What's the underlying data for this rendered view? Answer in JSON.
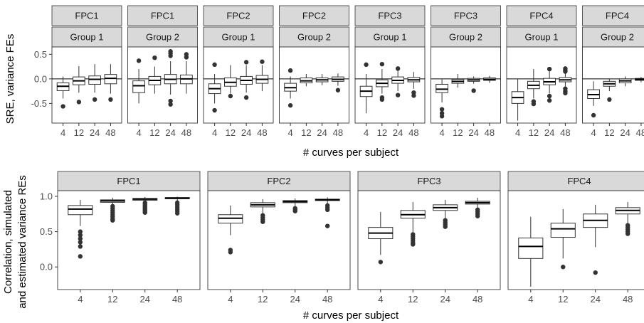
{
  "chart_data": [
    {
      "type": "boxplot",
      "xlabel": "# curves per subject",
      "ylabel": "SRE, variance FEs",
      "ylim": [
        -0.9,
        0.65
      ],
      "yticks": [
        0.5,
        0.0,
        -0.5
      ],
      "ytick_labels": [
        "0.5",
        "0.0",
        "-0.5"
      ],
      "reference_line_y": 0.0,
      "categories": [
        "4",
        "12",
        "24",
        "48"
      ],
      "panels": [
        {
          "strip1": "FPC1",
          "strip2": "Group 1",
          "boxes": [
            {
              "category": "4",
              "lower_whisker": -0.4,
              "q1": -0.24,
              "median": -0.15,
              "q3": -0.08,
              "upper_whisker": 0.05,
              "outliers": [
                -0.56
              ]
            },
            {
              "category": "12",
              "lower_whisker": -0.28,
              "q1": -0.12,
              "median": -0.04,
              "q3": 0.04,
              "upper_whisker": 0.26,
              "outliers": [
                -0.47
              ]
            },
            {
              "category": "24",
              "lower_whisker": -0.28,
              "q1": -0.11,
              "median": -0.01,
              "q3": 0.06,
              "upper_whisker": 0.3,
              "outliers": [
                -0.42
              ]
            },
            {
              "category": "48",
              "lower_whisker": -0.3,
              "q1": -0.1,
              "median": 0.01,
              "q3": 0.09,
              "upper_whisker": 0.3,
              "outliers": [
                -0.42
              ]
            }
          ]
        },
        {
          "strip1": "FPC1",
          "strip2": "Group 2",
          "boxes": [
            {
              "category": "4",
              "lower_whisker": -0.5,
              "q1": -0.28,
              "median": -0.14,
              "q3": -0.04,
              "upper_whisker": 0.2,
              "outliers": [
                0.37
              ]
            },
            {
              "category": "12",
              "lower_whisker": -0.3,
              "q1": -0.12,
              "median": -0.03,
              "q3": 0.05,
              "upper_whisker": 0.25,
              "outliers": [
                0.43
              ]
            },
            {
              "category": "24",
              "lower_whisker": -0.32,
              "q1": -0.1,
              "median": -0.01,
              "q3": 0.09,
              "upper_whisker": 0.36,
              "outliers": [
                0.47,
                0.52,
                0.56,
                -0.45,
                -0.52
              ]
            },
            {
              "category": "48",
              "lower_whisker": -0.3,
              "q1": -0.1,
              "median": 0.0,
              "q3": 0.08,
              "upper_whisker": 0.36,
              "outliers": [
                0.44,
                0.5
              ]
            }
          ]
        },
        {
          "strip1": "FPC2",
          "strip2": "Group 1",
          "boxes": [
            {
              "category": "4",
              "lower_whisker": -0.5,
              "q1": -0.3,
              "median": -0.2,
              "q3": -0.1,
              "upper_whisker": 0.1,
              "outliers": [
                -0.64,
                0.29
              ]
            },
            {
              "category": "12",
              "lower_whisker": -0.3,
              "q1": -0.15,
              "median": -0.07,
              "q3": 0.02,
              "upper_whisker": 0.28,
              "outliers": [
                -0.35
              ]
            },
            {
              "category": "24",
              "lower_whisker": -0.28,
              "q1": -0.11,
              "median": -0.03,
              "q3": 0.05,
              "upper_whisker": 0.28,
              "outliers": [
                0.34,
                -0.38
              ]
            },
            {
              "category": "48",
              "lower_whisker": -0.25,
              "q1": -0.09,
              "median": -0.01,
              "q3": 0.07,
              "upper_whisker": 0.28,
              "outliers": [
                0.35
              ]
            }
          ]
        },
        {
          "strip1": "FPC2",
          "strip2": "Group 2",
          "boxes": [
            {
              "category": "4",
              "lower_whisker": -0.4,
              "q1": -0.25,
              "median": -0.18,
              "q3": -0.09,
              "upper_whisker": 0.05,
              "outliers": [
                0.17,
                -0.54
              ]
            },
            {
              "category": "12",
              "lower_whisker": -0.15,
              "q1": -0.08,
              "median": -0.04,
              "q3": 0.02,
              "upper_whisker": 0.1,
              "outliers": []
            },
            {
              "category": "24",
              "lower_whisker": -0.13,
              "q1": -0.06,
              "median": -0.02,
              "q3": 0.02,
              "upper_whisker": 0.1,
              "outliers": []
            },
            {
              "category": "48",
              "lower_whisker": -0.14,
              "q1": -0.05,
              "median": -0.01,
              "q3": 0.04,
              "upper_whisker": 0.11,
              "outliers": [
                -0.23
              ]
            }
          ]
        },
        {
          "strip1": "FPC3",
          "strip2": "Group 1",
          "boxes": [
            {
              "category": "4",
              "lower_whisker": -0.7,
              "q1": -0.36,
              "median": -0.25,
              "q3": -0.15,
              "upper_whisker": 0.1,
              "outliers": [
                0.29
              ]
            },
            {
              "category": "12",
              "lower_whisker": -0.3,
              "q1": -0.16,
              "median": -0.09,
              "q3": -0.02,
              "upper_whisker": 0.2,
              "outliers": [
                0.3,
                -0.38,
                -0.42
              ]
            },
            {
              "category": "24",
              "lower_whisker": -0.25,
              "q1": -0.09,
              "median": -0.03,
              "q3": 0.04,
              "upper_whisker": 0.2,
              "outliers": [
                0.21,
                -0.33
              ]
            },
            {
              "category": "48",
              "lower_whisker": -0.2,
              "q1": -0.06,
              "median": -0.02,
              "q3": 0.03,
              "upper_whisker": 0.14,
              "outliers": [
                -0.28,
                -0.34
              ]
            }
          ]
        },
        {
          "strip1": "FPC3",
          "strip2": "Group 2",
          "boxes": [
            {
              "category": "4",
              "lower_whisker": -0.48,
              "q1": -0.28,
              "median": -0.21,
              "q3": -0.11,
              "upper_whisker": -0.01,
              "outliers": [
                -0.62,
                -0.7,
                -0.76
              ]
            },
            {
              "category": "12",
              "lower_whisker": -0.18,
              "q1": -0.09,
              "median": -0.05,
              "q3": -0.01,
              "upper_whisker": 0.1,
              "outliers": []
            },
            {
              "category": "24",
              "lower_whisker": -0.1,
              "q1": -0.05,
              "median": -0.02,
              "q3": 0.01,
              "upper_whisker": 0.05,
              "outliers": [
                -0.24
              ]
            },
            {
              "category": "48",
              "lower_whisker": -0.08,
              "q1": -0.03,
              "median": -0.01,
              "q3": 0.02,
              "upper_whisker": 0.06,
              "outliers": []
            }
          ]
        },
        {
          "strip1": "FPC4",
          "strip2": "Group 1",
          "boxes": [
            {
              "category": "4",
              "lower_whisker": -0.85,
              "q1": -0.5,
              "median": -0.38,
              "q3": -0.26,
              "upper_whisker": 0.0,
              "outliers": []
            },
            {
              "category": "12",
              "lower_whisker": -0.4,
              "q1": -0.2,
              "median": -0.13,
              "q3": -0.05,
              "upper_whisker": 0.2,
              "outliers": [
                -0.46,
                -0.51
              ]
            },
            {
              "category": "24",
              "lower_whisker": -0.3,
              "q1": -0.12,
              "median": -0.06,
              "q3": 0.01,
              "upper_whisker": 0.18,
              "outliers": [
                0.2,
                -0.35,
                -0.44
              ]
            },
            {
              "category": "48",
              "lower_whisker": -0.2,
              "q1": -0.06,
              "median": -0.02,
              "q3": 0.03,
              "upper_whisker": 0.12,
              "outliers": [
                0.15,
                0.18,
                0.21,
                -0.2,
                -0.25,
                -0.29
              ]
            }
          ]
        },
        {
          "strip1": "FPC4",
          "strip2": "Group 2",
          "boxes": [
            {
              "category": "4",
              "lower_whisker": -0.55,
              "q1": -0.4,
              "median": -0.32,
              "q3": -0.22,
              "upper_whisker": -0.05,
              "outliers": [
                -0.74
              ]
            },
            {
              "category": "12",
              "lower_whisker": -0.25,
              "q1": -0.15,
              "median": -0.1,
              "q3": -0.05,
              "upper_whisker": 0.0,
              "outliers": [
                -0.42
              ]
            },
            {
              "category": "24",
              "lower_whisker": -0.15,
              "q1": -0.08,
              "median": -0.04,
              "q3": 0.0,
              "upper_whisker": 0.05,
              "outliers": []
            },
            {
              "category": "48",
              "lower_whisker": -0.07,
              "q1": -0.03,
              "median": -0.01,
              "q3": 0.01,
              "upper_whisker": 0.04,
              "outliers": []
            }
          ]
        }
      ]
    },
    {
      "type": "boxplot",
      "xlabel": "# curves per subject",
      "ylabel_lines": [
        "Correlation, simulated",
        "and estimated variance REs"
      ],
      "ylim": [
        -0.32,
        1.08
      ],
      "yticks": [
        1.0,
        0.5,
        0.0
      ],
      "ytick_labels": [
        "1.0",
        "0.5",
        "0.0"
      ],
      "categories": [
        "4",
        "12",
        "24",
        "48"
      ],
      "panels": [
        {
          "strip1": "FPC1",
          "boxes": [
            {
              "category": "4",
              "lower_whisker": 0.58,
              "q1": 0.74,
              "median": 0.82,
              "q3": 0.87,
              "upper_whisker": 0.95,
              "outliers": [
                0.5,
                0.45,
                0.4,
                0.35,
                0.29,
                0.15
              ]
            },
            {
              "category": "12",
              "lower_whisker": 0.8,
              "q1": 0.915,
              "median": 0.935,
              "q3": 0.95,
              "upper_whisker": 0.98,
              "outliers": [
                0.86,
                0.83,
                0.8,
                0.77,
                0.74,
                0.71,
                0.68,
                0.66
              ]
            },
            {
              "category": "24",
              "lower_whisker": 0.88,
              "q1": 0.945,
              "median": 0.96,
              "q3": 0.97,
              "upper_whisker": 0.99,
              "outliers": [
                0.91,
                0.89,
                0.87,
                0.85,
                0.83,
                0.81,
                0.79,
                0.77
              ]
            },
            {
              "category": "48",
              "lower_whisker": 0.93,
              "q1": 0.965,
              "median": 0.975,
              "q3": 0.982,
              "upper_whisker": 0.995,
              "outliers": [
                0.91,
                0.88,
                0.85,
                0.82,
                0.79,
                0.76
              ]
            }
          ]
        },
        {
          "strip1": "FPC2",
          "boxes": [
            {
              "category": "4",
              "lower_whisker": 0.45,
              "q1": 0.62,
              "median": 0.69,
              "q3": 0.74,
              "upper_whisker": 0.87,
              "outliers": [
                0.24,
                0.21
              ]
            },
            {
              "category": "12",
              "lower_whisker": 0.75,
              "q1": 0.85,
              "median": 0.88,
              "q3": 0.91,
              "upper_whisker": 0.96,
              "outliers": [
                0.73,
                0.7,
                0.67,
                0.64
              ]
            },
            {
              "category": "24",
              "lower_whisker": 0.85,
              "q1": 0.91,
              "median": 0.925,
              "q3": 0.94,
              "upper_whisker": 0.97,
              "outliers": [
                0.83,
                0.81,
                0.79
              ]
            },
            {
              "category": "48",
              "lower_whisker": 0.89,
              "q1": 0.94,
              "median": 0.95,
              "q3": 0.96,
              "upper_whisker": 0.985,
              "outliers": [
                0.87,
                0.84,
                0.81,
                0.58
              ]
            }
          ]
        },
        {
          "strip1": "FPC3",
          "boxes": [
            {
              "category": "4",
              "lower_whisker": 0.17,
              "q1": 0.4,
              "median": 0.48,
              "q3": 0.56,
              "upper_whisker": 0.78,
              "outliers": [
                0.07
              ]
            },
            {
              "category": "12",
              "lower_whisker": 0.48,
              "q1": 0.69,
              "median": 0.74,
              "q3": 0.8,
              "upper_whisker": 0.92,
              "outliers": [
                0.46,
                0.43,
                0.4,
                0.37,
                0.34,
                0.32
              ]
            },
            {
              "category": "24",
              "lower_whisker": 0.68,
              "q1": 0.8,
              "median": 0.84,
              "q3": 0.88,
              "upper_whisker": 0.95,
              "outliers": [
                0.66,
                0.63,
                0.6,
                0.57
              ]
            },
            {
              "category": "48",
              "lower_whisker": 0.83,
              "q1": 0.89,
              "median": 0.91,
              "q3": 0.93,
              "upper_whisker": 0.98,
              "outliers": [
                0.81,
                0.78,
                0.75,
                0.72
              ]
            }
          ]
        },
        {
          "strip1": "FPC4",
          "boxes": [
            {
              "category": "4",
              "lower_whisker": -0.28,
              "q1": 0.12,
              "median": 0.29,
              "q3": 0.41,
              "upper_whisker": 0.71,
              "outliers": []
            },
            {
              "category": "12",
              "lower_whisker": 0.12,
              "q1": 0.42,
              "median": 0.54,
              "q3": 0.62,
              "upper_whisker": 0.82,
              "outliers": [
                0.0
              ]
            },
            {
              "category": "24",
              "lower_whisker": 0.28,
              "q1": 0.56,
              "median": 0.66,
              "q3": 0.75,
              "upper_whisker": 0.88,
              "outliers": [
                -0.08
              ]
            },
            {
              "category": "48",
              "lower_whisker": 0.62,
              "q1": 0.75,
              "median": 0.8,
              "q3": 0.84,
              "upper_whisker": 0.92,
              "outliers": [
                0.59,
                0.56,
                0.53,
                0.5,
                0.47
              ]
            }
          ]
        }
      ]
    }
  ]
}
